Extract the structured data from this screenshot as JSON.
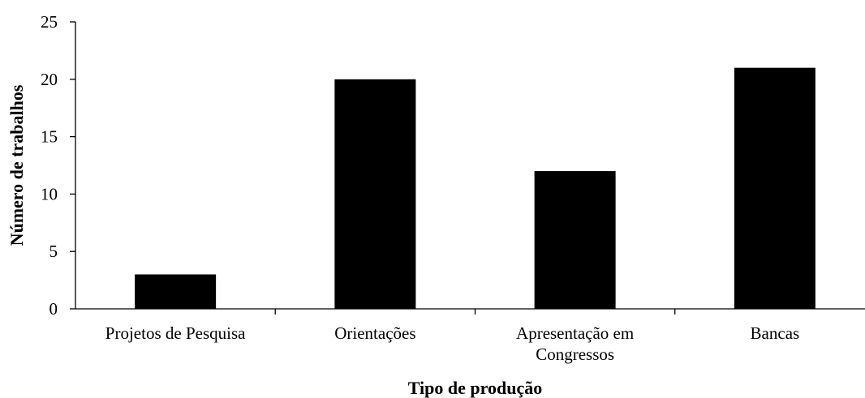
{
  "chart_data": {
    "type": "bar",
    "title": "",
    "xlabel": "Tipo de produção",
    "ylabel": "Número de trabalhos",
    "categories": [
      [
        "Projetos de Pesquisa"
      ],
      [
        "Orientações"
      ],
      [
        "Apresentação em",
        "Congressos"
      ],
      [
        "Bancas"
      ]
    ],
    "values": [
      3,
      20,
      12,
      21
    ],
    "ylim": [
      0,
      25
    ],
    "yticks": [
      0,
      5,
      10,
      15,
      20,
      25
    ],
    "grid": false,
    "legend": "none",
    "bar_color": "#000000"
  }
}
